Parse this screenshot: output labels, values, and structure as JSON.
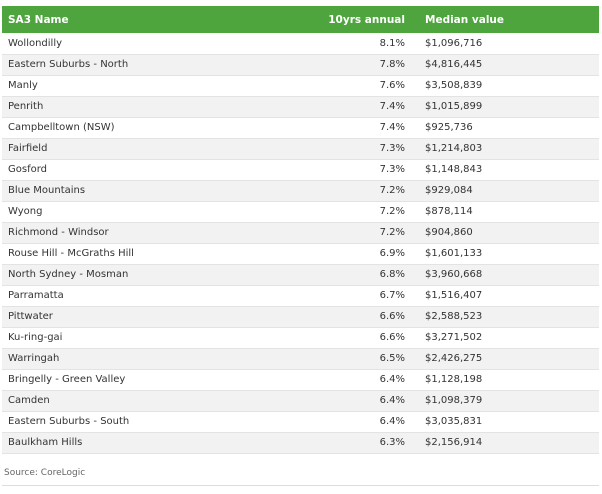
{
  "table": {
    "headers": {
      "name": "SA3 Name",
      "annual": "10yrs annual",
      "median": "Median value"
    },
    "rows": [
      {
        "name": "Wollondilly",
        "annual": "8.1%",
        "median": "$1,096,716"
      },
      {
        "name": "Eastern Suburbs - North",
        "annual": "7.8%",
        "median": "$4,816,445"
      },
      {
        "name": "Manly",
        "annual": "7.6%",
        "median": "$3,508,839"
      },
      {
        "name": "Penrith",
        "annual": "7.4%",
        "median": "$1,015,899"
      },
      {
        "name": "Campbelltown (NSW)",
        "annual": "7.4%",
        "median": "$925,736"
      },
      {
        "name": "Fairfield",
        "annual": "7.3%",
        "median": "$1,214,803"
      },
      {
        "name": "Gosford",
        "annual": "7.3%",
        "median": "$1,148,843"
      },
      {
        "name": "Blue Mountains",
        "annual": "7.2%",
        "median": "$929,084"
      },
      {
        "name": "Wyong",
        "annual": "7.2%",
        "median": "$878,114"
      },
      {
        "name": "Richmond - Windsor",
        "annual": "7.2%",
        "median": "$904,860"
      },
      {
        "name": "Rouse Hill - McGraths Hill",
        "annual": "6.9%",
        "median": "$1,601,133"
      },
      {
        "name": "North Sydney - Mosman",
        "annual": "6.8%",
        "median": "$3,960,668"
      },
      {
        "name": "Parramatta",
        "annual": "6.7%",
        "median": "$1,516,407"
      },
      {
        "name": "Pittwater",
        "annual": "6.6%",
        "median": "$2,588,523"
      },
      {
        "name": "Ku-ring-gai",
        "annual": "6.6%",
        "median": "$3,271,502"
      },
      {
        "name": "Warringah",
        "annual": "6.5%",
        "median": "$2,426,275"
      },
      {
        "name": "Bringelly - Green Valley",
        "annual": "6.4%",
        "median": "$1,128,198"
      },
      {
        "name": "Camden",
        "annual": "6.4%",
        "median": "$1,098,379"
      },
      {
        "name": "Eastern Suburbs - South",
        "annual": "6.4%",
        "median": "$3,035,831"
      },
      {
        "name": "Baulkham Hills",
        "annual": "6.3%",
        "median": "$2,156,914"
      }
    ]
  },
  "source": "Source: CoreLogic",
  "colors": {
    "header_bg": "#4ea53d",
    "header_text": "#ffffff",
    "row_alt": "#f2f2f2"
  }
}
